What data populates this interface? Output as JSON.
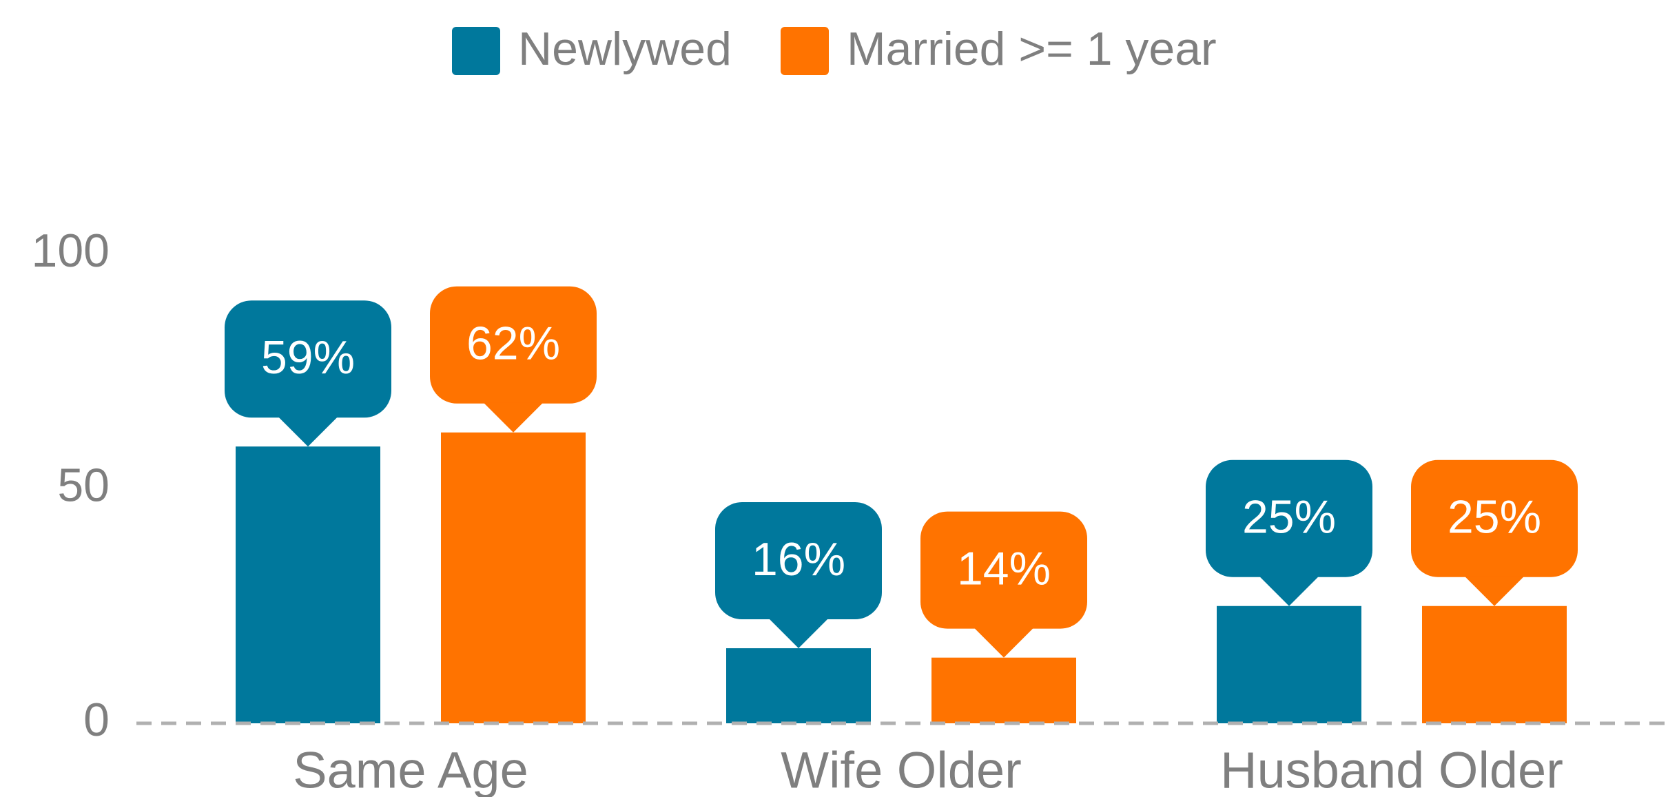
{
  "chart_data": {
    "type": "bar",
    "categories": [
      "Same Age",
      "Wife Older",
      "Husband Older"
    ],
    "series": [
      {
        "name": "Newlywed",
        "color": "#00789c",
        "values": [
          59,
          16,
          25
        ],
        "value_labels": [
          "59%",
          "16%",
          "25%"
        ]
      },
      {
        "name": "Married >= 1 year",
        "color": "#ff7300",
        "values": [
          62,
          14,
          25
        ],
        "value_labels": [
          "62%",
          "14%",
          "25%"
        ]
      }
    ],
    "ylim": [
      0,
      100
    ],
    "yticks": [
      0,
      50,
      100
    ],
    "legend": "top"
  }
}
